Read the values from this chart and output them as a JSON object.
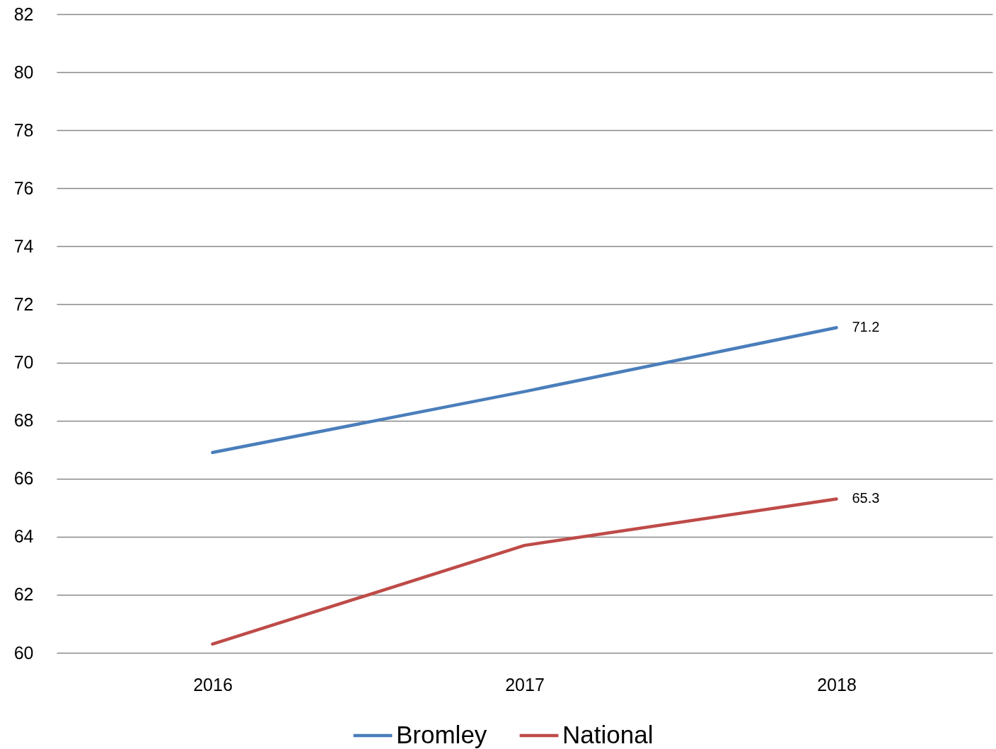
{
  "chart_data": {
    "type": "line",
    "categories": [
      "2016",
      "2017",
      "2018"
    ],
    "series": [
      {
        "name": "Bromley",
        "color": "#4a7ebb",
        "values": [
          66.9,
          69.0,
          71.2
        ],
        "value_labels": [
          null,
          null,
          "71.2"
        ]
      },
      {
        "name": "National",
        "color": "#be4b48",
        "values": [
          60.3,
          63.7,
          65.3
        ],
        "value_labels": [
          null,
          null,
          "65.3"
        ]
      }
    ],
    "ylim": [
      60,
      82
    ],
    "yticks": [
      60,
      62,
      64,
      66,
      68,
      70,
      72,
      74,
      76,
      78,
      80,
      82
    ],
    "grid": "y",
    "legend": "bottom",
    "marker": "none",
    "line_style": "solid"
  }
}
